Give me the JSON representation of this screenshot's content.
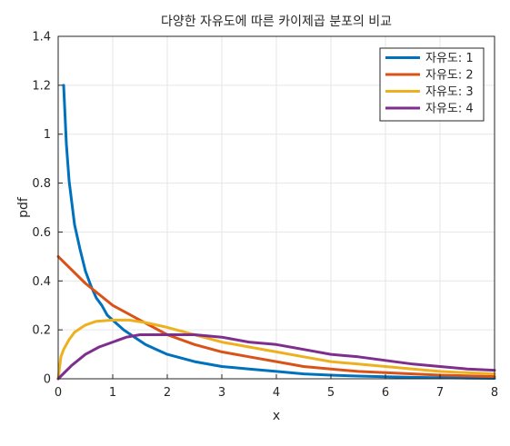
{
  "chart_data": {
    "type": "line",
    "title": "다양한 자유도에 따른 카이제곱 분포의 비교",
    "xlabel": "x",
    "ylabel": "pdf",
    "xlim": [
      0,
      8
    ],
    "ylim": [
      0,
      1.4
    ],
    "xticks": [
      0,
      1,
      2,
      3,
      4,
      5,
      6,
      7,
      8
    ],
    "xtick_labels": [
      "0",
      "1",
      "2",
      "3",
      "4",
      "5",
      "6",
      "7",
      "8"
    ],
    "yticks": [
      0,
      0.2,
      0.4,
      0.6,
      0.8,
      1,
      1.2,
      1.4
    ],
    "ytick_labels": [
      "0",
      "0.2",
      "0.4",
      "0.6",
      "0.8",
      "1",
      "1.2",
      "1.4"
    ],
    "grid": true,
    "legend_position": "top-right",
    "series": [
      {
        "name": "자유도: 1",
        "color": "#0072BD",
        "x": [
          0.1,
          0.15,
          0.2,
          0.3,
          0.4,
          0.5,
          0.6,
          0.7,
          0.8,
          0.9,
          1.0,
          1.2,
          1.4,
          1.6,
          1.8,
          2.0,
          2.5,
          3.0,
          3.5,
          4.0,
          4.5,
          5.0,
          5.5,
          6.0,
          6.5,
          7.0,
          7.5,
          8.0
        ],
        "y": [
          1.2,
          0.96,
          0.81,
          0.63,
          0.53,
          0.44,
          0.38,
          0.33,
          0.3,
          0.26,
          0.24,
          0.2,
          0.17,
          0.14,
          0.12,
          0.1,
          0.07,
          0.05,
          0.04,
          0.03,
          0.02,
          0.015,
          0.011,
          0.008,
          0.006,
          0.004,
          0.003,
          0.002
        ]
      },
      {
        "name": "자유도: 2",
        "color": "#D95319",
        "x": [
          0,
          0.5,
          1,
          1.5,
          2,
          2.5,
          3,
          3.5,
          4,
          4.5,
          5,
          5.5,
          6,
          6.5,
          7,
          7.5,
          8
        ],
        "y": [
          0.5,
          0.39,
          0.3,
          0.24,
          0.18,
          0.14,
          0.11,
          0.09,
          0.07,
          0.05,
          0.04,
          0.03,
          0.025,
          0.02,
          0.015,
          0.012,
          0.009
        ]
      },
      {
        "name": "자유도: 3",
        "color": "#EDB120",
        "x": [
          0,
          0.05,
          0.1,
          0.2,
          0.3,
          0.5,
          0.7,
          1.0,
          1.3,
          1.6,
          2.0,
          2.5,
          3.0,
          3.5,
          4.0,
          4.5,
          5.0,
          5.5,
          6.0,
          6.5,
          7.0,
          7.5,
          8.0
        ],
        "y": [
          0,
          0.09,
          0.12,
          0.16,
          0.19,
          0.22,
          0.235,
          0.24,
          0.24,
          0.23,
          0.21,
          0.18,
          0.15,
          0.13,
          0.11,
          0.09,
          0.07,
          0.06,
          0.05,
          0.04,
          0.03,
          0.025,
          0.02
        ]
      },
      {
        "name": "자유도: 4",
        "color": "#7E2F8E",
        "x": [
          0,
          0.25,
          0.5,
          0.75,
          1.0,
          1.25,
          1.5,
          2.0,
          2.5,
          3.0,
          3.5,
          4.0,
          4.5,
          5.0,
          5.5,
          6.0,
          6.5,
          7.0,
          7.5,
          8.0
        ],
        "y": [
          0,
          0.055,
          0.1,
          0.13,
          0.15,
          0.17,
          0.18,
          0.18,
          0.18,
          0.17,
          0.15,
          0.14,
          0.12,
          0.1,
          0.09,
          0.075,
          0.06,
          0.05,
          0.04,
          0.035
        ]
      }
    ]
  }
}
